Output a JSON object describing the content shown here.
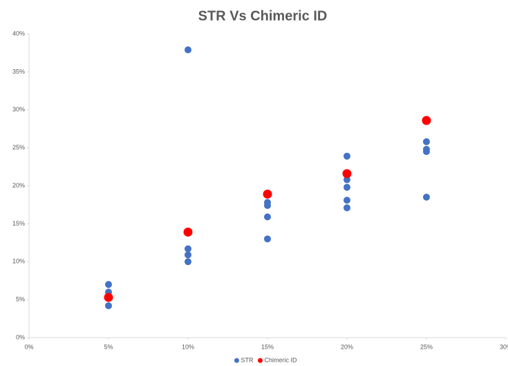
{
  "chart_data": {
    "type": "scatter",
    "title": "STR Vs Chimeric ID",
    "series": [
      {
        "name": "STR",
        "color": "#4472c4",
        "x": [
          5,
          5,
          5,
          5,
          10,
          10,
          10,
          10,
          15,
          15,
          15,
          15,
          20,
          20,
          20,
          20,
          20,
          25,
          25,
          25,
          25
        ],
        "values": [
          7.0,
          6.0,
          5.2,
          4.2,
          37.9,
          11.7,
          10.9,
          10.0,
          17.8,
          17.4,
          15.9,
          13.0,
          23.9,
          20.8,
          19.8,
          18.1,
          17.1,
          25.8,
          24.8,
          24.5,
          18.5
        ]
      },
      {
        "name": "Chimeric ID",
        "color": "#ff0000",
        "x": [
          5,
          10,
          15,
          20,
          25
        ],
        "values": [
          5.3,
          13.9,
          18.9,
          21.6,
          28.6
        ]
      }
    ],
    "xlim": [
      0,
      30
    ],
    "xticks": [
      {
        "value": 0,
        "label": "0%"
      },
      {
        "value": 5,
        "label": "5%"
      },
      {
        "value": 10,
        "label": "10%"
      },
      {
        "value": 15,
        "label": "15%"
      },
      {
        "value": 20,
        "label": "20%"
      },
      {
        "value": 25,
        "label": "25%"
      },
      {
        "value": 30,
        "label": "30%"
      }
    ],
    "ylim": [
      0,
      40
    ],
    "yticks": [
      {
        "value": 0,
        "label": "0%"
      },
      {
        "value": 5,
        "label": "5%"
      },
      {
        "value": 10,
        "label": "10%"
      },
      {
        "value": 15,
        "label": "15%"
      },
      {
        "value": 20,
        "label": "20%"
      },
      {
        "value": 25,
        "label": "25%"
      },
      {
        "value": 30,
        "label": "30%"
      },
      {
        "value": 35,
        "label": "35%"
      },
      {
        "value": 40,
        "label": "40%"
      }
    ],
    "grid": false,
    "legend": "bottom"
  }
}
